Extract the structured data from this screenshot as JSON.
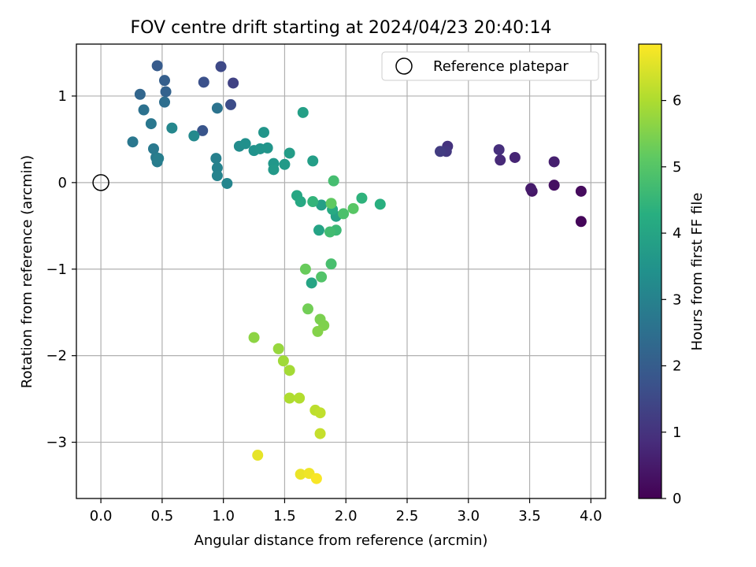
{
  "chart_data": {
    "type": "scatter",
    "title": "FOV centre drift starting at 2024/04/23 20:40:14",
    "xlabel": "Angular distance from reference (arcmin)",
    "ylabel": "Rotation from reference (arcmin)",
    "xlim": [
      -0.2,
      4.12
    ],
    "ylim": [
      -3.65,
      1.6
    ],
    "xticks": [
      0.0,
      0.5,
      1.0,
      1.5,
      2.0,
      2.5,
      3.0,
      3.5,
      4.0
    ],
    "xtick_labels": [
      "0.0",
      "0.5",
      "1.0",
      "1.5",
      "2.0",
      "2.5",
      "3.0",
      "3.5",
      "4.0"
    ],
    "yticks": [
      1,
      0,
      -1,
      -2,
      -3
    ],
    "ytick_labels": [
      "1",
      "0",
      "−1",
      "−2",
      "−3"
    ],
    "grid": true,
    "colormap": "viridis",
    "colorbar": {
      "label": "Hours from first FF file",
      "range": [
        0,
        6.85
      ],
      "ticks": [
        0,
        1,
        2,
        3,
        4,
        5,
        6
      ],
      "tick_labels": [
        "0",
        "1",
        "2",
        "3",
        "4",
        "5",
        "6"
      ]
    },
    "legend": {
      "position": "top-right",
      "entries": [
        "Reference platepar"
      ]
    },
    "reference_point": {
      "x": 0.0,
      "y": 0.0
    },
    "points": [
      {
        "x": 3.92,
        "y": -0.45,
        "c": 0.1
      },
      {
        "x": 3.92,
        "y": -0.1,
        "c": 0.2
      },
      {
        "x": 3.7,
        "y": -0.03,
        "c": 0.3
      },
      {
        "x": 3.52,
        "y": -0.1,
        "c": 0.4
      },
      {
        "x": 3.51,
        "y": -0.07,
        "c": 0.5
      },
      {
        "x": 3.7,
        "y": 0.24,
        "c": 0.6
      },
      {
        "x": 3.38,
        "y": 0.29,
        "c": 0.7
      },
      {
        "x": 3.26,
        "y": 0.26,
        "c": 0.8
      },
      {
        "x": 3.25,
        "y": 0.38,
        "c": 0.9
      },
      {
        "x": 2.83,
        "y": 0.42,
        "c": 1.0
      },
      {
        "x": 2.82,
        "y": 0.36,
        "c": 1.1
      },
      {
        "x": 2.77,
        "y": 0.36,
        "c": 1.2
      },
      {
        "x": 1.08,
        "y": 1.15,
        "c": 1.35
      },
      {
        "x": 0.98,
        "y": 1.34,
        "c": 1.5
      },
      {
        "x": 1.06,
        "y": 0.9,
        "c": 1.6
      },
      {
        "x": 0.84,
        "y": 1.16,
        "c": 1.7
      },
      {
        "x": 0.83,
        "y": 0.6,
        "c": 1.8
      },
      {
        "x": 0.46,
        "y": 1.35,
        "c": 1.95
      },
      {
        "x": 0.52,
        "y": 1.18,
        "c": 2.05
      },
      {
        "x": 0.53,
        "y": 1.05,
        "c": 2.15
      },
      {
        "x": 0.32,
        "y": 1.02,
        "c": 2.25
      },
      {
        "x": 0.52,
        "y": 0.93,
        "c": 2.45
      },
      {
        "x": 0.35,
        "y": 0.84,
        "c": 2.55
      },
      {
        "x": 0.95,
        "y": 0.86,
        "c": 2.6
      },
      {
        "x": 0.41,
        "y": 0.68,
        "c": 2.7
      },
      {
        "x": 0.26,
        "y": 0.47,
        "c": 2.7
      },
      {
        "x": 0.43,
        "y": 0.39,
        "c": 2.75
      },
      {
        "x": 0.45,
        "y": 0.29,
        "c": 2.8
      },
      {
        "x": 0.46,
        "y": 0.24,
        "c": 2.85
      },
      {
        "x": 0.47,
        "y": 0.28,
        "c": 2.9
      },
      {
        "x": 0.94,
        "y": 0.28,
        "c": 2.95
      },
      {
        "x": 0.95,
        "y": 0.17,
        "c": 3.0
      },
      {
        "x": 0.95,
        "y": 0.08,
        "c": 3.05
      },
      {
        "x": 1.03,
        "y": -0.01,
        "c": 3.1
      },
      {
        "x": 0.58,
        "y": 0.63,
        "c": 3.15
      },
      {
        "x": 0.76,
        "y": 0.54,
        "c": 3.2
      },
      {
        "x": 1.13,
        "y": 0.42,
        "c": 3.3
      },
      {
        "x": 1.18,
        "y": 0.45,
        "c": 3.4
      },
      {
        "x": 1.25,
        "y": 0.37,
        "c": 3.45
      },
      {
        "x": 1.3,
        "y": 0.39,
        "c": 3.5
      },
      {
        "x": 1.36,
        "y": 0.4,
        "c": 3.55
      },
      {
        "x": 1.33,
        "y": 0.58,
        "c": 3.55
      },
      {
        "x": 1.41,
        "y": 0.22,
        "c": 3.6
      },
      {
        "x": 1.41,
        "y": 0.15,
        "c": 3.65
      },
      {
        "x": 1.5,
        "y": 0.21,
        "c": 3.7
      },
      {
        "x": 1.54,
        "y": 0.34,
        "c": 3.75
      },
      {
        "x": 1.73,
        "y": 0.25,
        "c": 3.8
      },
      {
        "x": 1.65,
        "y": 0.81,
        "c": 3.85
      },
      {
        "x": 1.8,
        "y": -0.26,
        "c": 3.85
      },
      {
        "x": 1.92,
        "y": -0.39,
        "c": 3.9
      },
      {
        "x": 1.78,
        "y": -0.55,
        "c": 3.95
      },
      {
        "x": 1.72,
        "y": -1.16,
        "c": 4.0
      },
      {
        "x": 1.6,
        "y": -0.15,
        "c": 4.05
      },
      {
        "x": 1.63,
        "y": -0.22,
        "c": 4.1
      },
      {
        "x": 1.89,
        "y": -0.31,
        "c": 4.15
      },
      {
        "x": 2.28,
        "y": -0.25,
        "c": 4.3
      },
      {
        "x": 2.13,
        "y": -0.18,
        "c": 4.4
      },
      {
        "x": 1.73,
        "y": -0.22,
        "c": 4.45
      },
      {
        "x": 1.92,
        "y": -0.55,
        "c": 4.6
      },
      {
        "x": 1.87,
        "y": -0.57,
        "c": 4.7
      },
      {
        "x": 1.9,
        "y": 0.02,
        "c": 4.75
      },
      {
        "x": 1.88,
        "y": -0.94,
        "c": 4.8
      },
      {
        "x": 1.98,
        "y": -0.36,
        "c": 4.85
      },
      {
        "x": 1.8,
        "y": -1.09,
        "c": 4.95
      },
      {
        "x": 2.06,
        "y": -0.3,
        "c": 5.05
      },
      {
        "x": 1.88,
        "y": -0.24,
        "c": 5.15
      },
      {
        "x": 1.67,
        "y": -1.0,
        "c": 5.25
      },
      {
        "x": 1.69,
        "y": -1.46,
        "c": 5.35
      },
      {
        "x": 1.79,
        "y": -1.58,
        "c": 5.45
      },
      {
        "x": 1.82,
        "y": -1.65,
        "c": 5.5
      },
      {
        "x": 1.77,
        "y": -1.72,
        "c": 5.55
      },
      {
        "x": 1.25,
        "y": -1.79,
        "c": 5.65
      },
      {
        "x": 1.45,
        "y": -1.92,
        "c": 5.75
      },
      {
        "x": 1.49,
        "y": -2.06,
        "c": 5.85
      },
      {
        "x": 1.54,
        "y": -2.17,
        "c": 5.9
      },
      {
        "x": 1.54,
        "y": -2.49,
        "c": 6.0
      },
      {
        "x": 1.62,
        "y": -2.49,
        "c": 6.05
      },
      {
        "x": 1.75,
        "y": -2.63,
        "c": 6.15
      },
      {
        "x": 1.79,
        "y": -2.66,
        "c": 6.2
      },
      {
        "x": 1.79,
        "y": -2.9,
        "c": 6.25
      },
      {
        "x": 1.28,
        "y": -3.15,
        "c": 6.6
      },
      {
        "x": 1.63,
        "y": -3.37,
        "c": 6.65
      },
      {
        "x": 1.7,
        "y": -3.36,
        "c": 6.7
      },
      {
        "x": 1.76,
        "y": -3.42,
        "c": 6.8
      }
    ]
  }
}
